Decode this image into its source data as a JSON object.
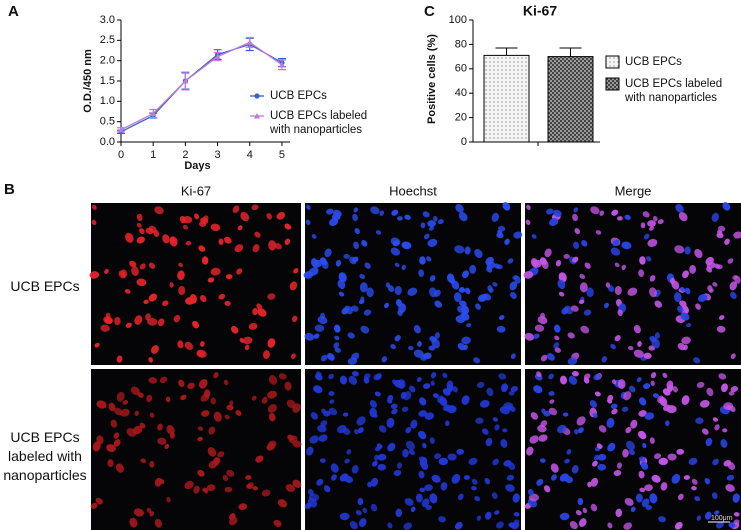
{
  "panels": {
    "a": "A",
    "b": "B",
    "c": "C"
  },
  "chart_data": [
    {
      "type": "line",
      "xlabel": "Days",
      "ylabel": "O.D./450 nm",
      "x": [
        0,
        1,
        2,
        3,
        4,
        5
      ],
      "xlim": [
        0,
        5.25
      ],
      "xticks": [
        0,
        1,
        2,
        3,
        4,
        5
      ],
      "ylim": [
        0,
        3
      ],
      "yticks": [
        {
          "value": 0,
          "label": "0.0"
        },
        {
          "value": 0.5,
          "label": "0.5"
        },
        {
          "value": 1,
          "label": "1.0"
        },
        {
          "value": 1.5,
          "label": "1.5"
        },
        {
          "value": 2,
          "label": "2.0"
        },
        {
          "value": 2.5,
          "label": "2.5"
        },
        {
          "value": 3,
          "label": "3.0"
        }
      ],
      "series": [
        {
          "name": "UCB EPCs",
          "color": "#3a5fcd",
          "marker": "circle",
          "values": [
            0.25,
            0.65,
            1.5,
            2.15,
            2.4,
            1.95
          ],
          "errors": [
            0.04,
            0.06,
            0.2,
            0.12,
            0.15,
            0.1
          ]
        },
        {
          "name": "UCB EPCs labeled with nanoparticles",
          "color": "#c07ad6",
          "marker": "triangle",
          "values": [
            0.3,
            0.7,
            1.5,
            2.1,
            2.45,
            1.9
          ],
          "errors": [
            0.05,
            0.1,
            0.22,
            0.1,
            0.12,
            0.12
          ]
        }
      ]
    },
    {
      "type": "bar",
      "title": "Ki-67",
      "ylabel": "Positive cells (%)",
      "ylim": [
        0,
        100
      ],
      "yticks": [
        0,
        20,
        40,
        60,
        80,
        100
      ],
      "series": [
        {
          "name": "UCB EPCs",
          "color": "#f2f2f2",
          "hatch": "dots",
          "values": [
            71
          ],
          "errors": [
            6
          ]
        },
        {
          "name": "UCB EPCs labeled with nanoparticles",
          "color": "#8a8a8a",
          "hatch": "grid",
          "values": [
            70
          ],
          "errors": [
            7
          ]
        }
      ]
    }
  ],
  "images": {
    "columns": [
      "Ki-67",
      "Hoechst",
      "Merge"
    ],
    "rows": [
      "UCB EPCs",
      "UCB EPCs labeled with nanoparticles"
    ],
    "scale_bar": "100μm"
  }
}
